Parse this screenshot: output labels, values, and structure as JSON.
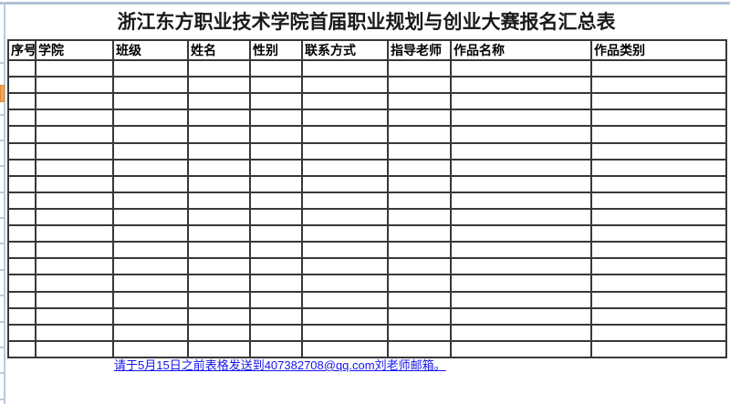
{
  "title": "浙江东方职业技术学院首届职业规划与创业大赛报名汇总表",
  "table": {
    "columns": [
      {
        "id": "xuhao",
        "label": "序号"
      },
      {
        "id": "xueyuan",
        "label": "学院"
      },
      {
        "id": "banji",
        "label": "班级"
      },
      {
        "id": "xingming",
        "label": "姓名"
      },
      {
        "id": "xingbie",
        "label": "性别"
      },
      {
        "id": "lianxifangshi",
        "label": "联系方式"
      },
      {
        "id": "zhidaolaoshi",
        "label": "指导老师"
      },
      {
        "id": "zuopinmingcheng",
        "label": "作品名称"
      },
      {
        "id": "zuopinleibie",
        "label": "作品类别"
      }
    ],
    "empty_row_count": 18,
    "cell_value": ""
  },
  "note": {
    "text": "请于5月15日之前表格发送到407382708@qq.com刘老师邮箱。",
    "email": "407382708@qq.com"
  },
  "colors": {
    "grid_line": "#383838",
    "link_blue": "#1414f0",
    "gutter_blue": "#b5cbe0",
    "top_strip_blue": "#aec3d6",
    "marker_orange": "#f6a45c",
    "background": "#ffffff"
  }
}
